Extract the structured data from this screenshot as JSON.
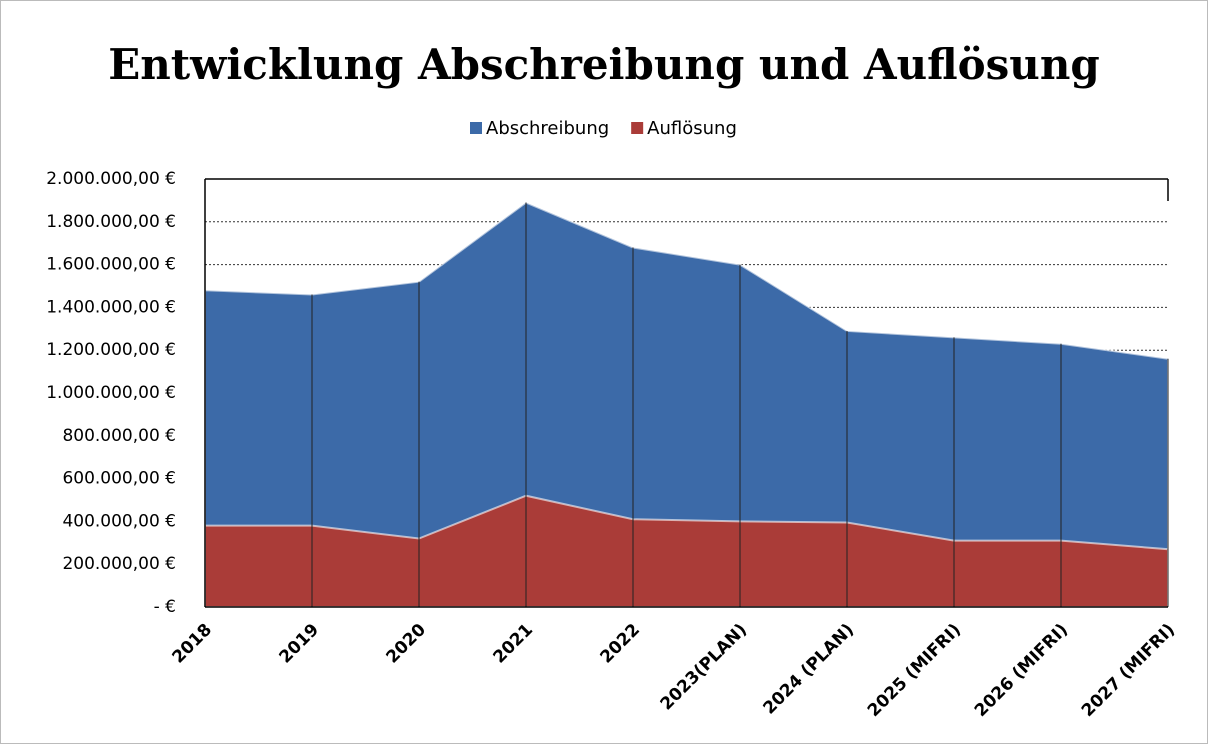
{
  "chart_data": {
    "type": "area",
    "title": "Entwicklung Abschreibung und Auflösung",
    "categories": [
      "2018",
      "2019",
      "2020",
      "2021",
      "2022",
      "2023(PLAN)",
      "2024 (PLAN)",
      "2025 (MIFRI)",
      "2026 (MIFRI)",
      "2027 (MIFRI)"
    ],
    "series": [
      {
        "name": "Abschreibung",
        "color": "#3c6aa8",
        "values": [
          1480000,
          1460000,
          1520000,
          1890000,
          1680000,
          1600000,
          1290000,
          1260000,
          1230000,
          1160000
        ]
      },
      {
        "name": "Auflösung",
        "color": "#aa3c38",
        "values": [
          380000,
          380000,
          320000,
          520000,
          410000,
          400000,
          395000,
          310000,
          310000,
          270000
        ]
      }
    ],
    "ylim": [
      0,
      2000000
    ],
    "yticks": [
      {
        "value": 0,
        "label": "-   €"
      },
      {
        "value": 200000,
        "label": "200.000,00 €"
      },
      {
        "value": 400000,
        "label": "400.000,00 €"
      },
      {
        "value": 600000,
        "label": "600.000,00 €"
      },
      {
        "value": 800000,
        "label": "800.000,00 €"
      },
      {
        "value": 1000000,
        "label": "1.000.000,00 €"
      },
      {
        "value": 1200000,
        "label": "1.200.000,00 €"
      },
      {
        "value": 1400000,
        "label": "1.400.000,00 €"
      },
      {
        "value": 1600000,
        "label": "1.600.000,00 €"
      },
      {
        "value": 1800000,
        "label": "1.800.000,00 €"
      },
      {
        "value": 2000000,
        "label": "2.000.000,00 €"
      }
    ],
    "grid": true,
    "legend": "top"
  }
}
